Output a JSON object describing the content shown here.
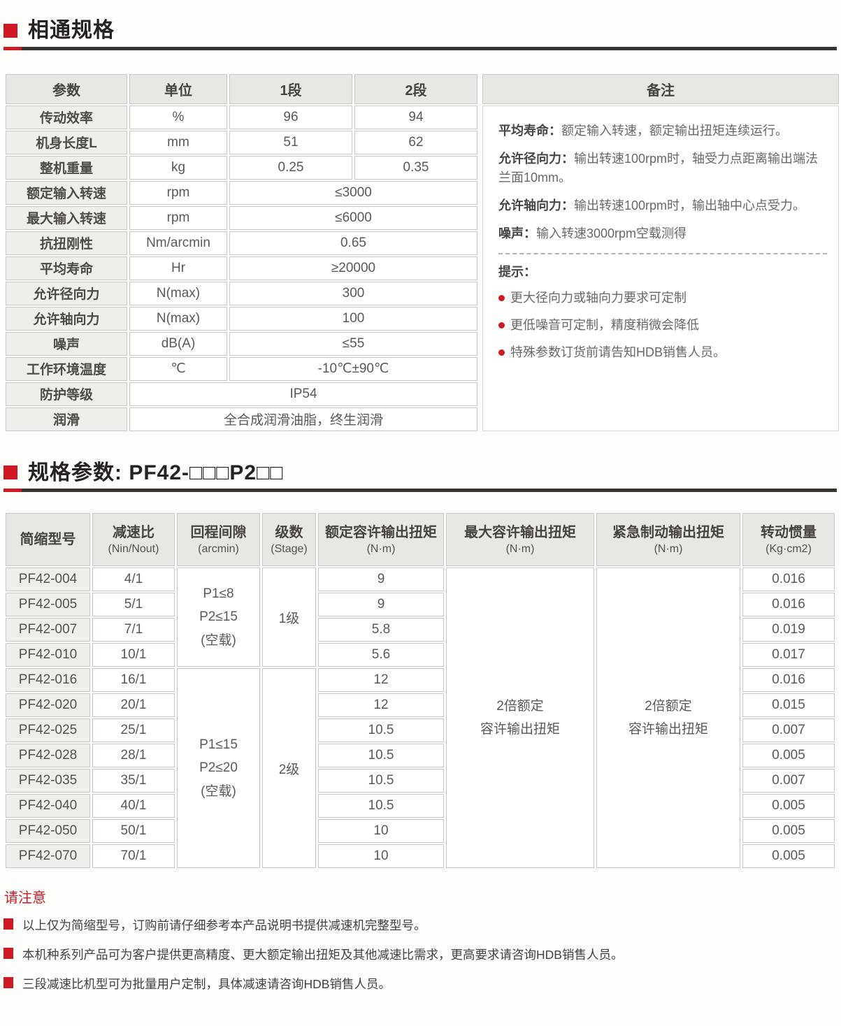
{
  "colors": {
    "accent": "#cf1a23",
    "heading_rule": "#38342f",
    "header_cell_bg": "#e8e7e3",
    "label_cell_bg": "#efeeea"
  },
  "section1": {
    "title": "相通规格",
    "table": {
      "headers": [
        "参数",
        "单位",
        "1段",
        "2段"
      ],
      "rows": [
        {
          "label": "传动效率",
          "unit": "%",
          "v1": "96",
          "v2": "94"
        },
        {
          "label": "机身长度L",
          "unit": "mm",
          "v1": "51",
          "v2": "62"
        },
        {
          "label": "整机重量",
          "unit": "kg",
          "v1": "0.25",
          "v2": "0.35"
        },
        {
          "label": "额定输入转速",
          "unit": "rpm",
          "span": "≤3000"
        },
        {
          "label": "最大输入转速",
          "unit": "rpm",
          "span": "≤6000"
        },
        {
          "label": "抗扭刚性",
          "unit": "Nm/arcmin",
          "span": "0.65"
        },
        {
          "label": "平均寿命",
          "unit": "Hr",
          "span": "≥20000"
        },
        {
          "label": "允许径向力",
          "unit": "N(max)",
          "span": "300"
        },
        {
          "label": "允许轴向力",
          "unit": "N(max)",
          "span": "100"
        },
        {
          "label": "噪声",
          "unit": "dB(A)",
          "span": "≤55"
        },
        {
          "label": "工作环境温度",
          "unit": "℃",
          "span": "-10℃±90℃"
        },
        {
          "label": "防护等级",
          "full": "IP54"
        },
        {
          "label": "润滑",
          "full": "全合成润滑油脂，终生润滑"
        }
      ]
    },
    "notes": {
      "header": "备注",
      "paragraphs": [
        {
          "label": "平均寿命：",
          "text": "额定输入转速，额定输出扭矩连续运行。"
        },
        {
          "label": "允许径向力：",
          "text": "输出转速100rpm时，轴受力点距离输出端法兰面10mm。"
        },
        {
          "label": "允许轴向力：",
          "text": "输出转速100rpm时，输出轴中心点受力。"
        },
        {
          "label": "噪声：",
          "text": "输入转速3000rpm空载测得"
        }
      ],
      "tips_title": "提示：",
      "tips": [
        "更大径向力或轴向力要求可定制",
        "更低噪音可定制，精度稍微会降低",
        "特殊参数订货前请告知HDB销售人员。"
      ]
    }
  },
  "section2": {
    "title": "规格参数: PF42-□□□P2□□",
    "table": {
      "headers": [
        {
          "cn": "简缩型号",
          "en": ""
        },
        {
          "cn": "减速比",
          "en": "(Nin/Nout)"
        },
        {
          "cn": "回程间隙",
          "en": "(arcmin)"
        },
        {
          "cn": "级数",
          "en": "(Stage)"
        },
        {
          "cn": "额定容许输出扭矩",
          "en": "(N·m)"
        },
        {
          "cn": "最大容许输出扭矩",
          "en": "(N·m)"
        },
        {
          "cn": "紧急制动输出扭矩",
          "en": "(N·m)"
        },
        {
          "cn": "转动惯量",
          "en": "(Kg·cm2)"
        }
      ],
      "rows": [
        {
          "model": "PF42-004",
          "ratio": "4/1",
          "torque": "9",
          "inertia": "0.016"
        },
        {
          "model": "PF42-005",
          "ratio": "5/1",
          "torque": "9",
          "inertia": "0.016"
        },
        {
          "model": "PF42-007",
          "ratio": "7/1",
          "torque": "5.8",
          "inertia": "0.019"
        },
        {
          "model": "PF42-010",
          "ratio": "10/1",
          "torque": "5.6",
          "inertia": "0.017"
        },
        {
          "model": "PF42-016",
          "ratio": "16/1",
          "torque": "12",
          "inertia": "0.016"
        },
        {
          "model": "PF42-020",
          "ratio": "20/1",
          "torque": "12",
          "inertia": "0.015"
        },
        {
          "model": "PF42-025",
          "ratio": "25/1",
          "torque": "10.5",
          "inertia": "0.007"
        },
        {
          "model": "PF42-028",
          "ratio": "28/1",
          "torque": "10.5",
          "inertia": "0.005"
        },
        {
          "model": "PF42-035",
          "ratio": "35/1",
          "torque": "10.5",
          "inertia": "0.007"
        },
        {
          "model": "PF42-040",
          "ratio": "40/1",
          "torque": "10.5",
          "inertia": "0.005"
        },
        {
          "model": "PF42-050",
          "ratio": "50/1",
          "torque": "10",
          "inertia": "0.005"
        },
        {
          "model": "PF42-070",
          "ratio": "70/1",
          "torque": "10",
          "inertia": "0.005"
        }
      ],
      "groups": [
        {
          "start": 0,
          "count": 4,
          "backlash": [
            "P1≤8",
            "P2≤15",
            "(空载)"
          ],
          "stage": "1级"
        },
        {
          "start": 4,
          "count": 8,
          "backlash": [
            "P1≤15",
            "P2≤20",
            "(空载)"
          ],
          "stage": "2级"
        }
      ],
      "max_torque": [
        "2倍额定",
        "容许输出扭矩"
      ],
      "brake_torque": [
        "2倍额定",
        "容许输出扭矩"
      ]
    }
  },
  "footer": {
    "title": "请注意",
    "items": [
      "以上仅为简缩型号，订购前请仔细参考本产品说明书提供减速机完整型号。",
      "本机种系列产品可为客户提供更高精度、更大额定输出扭矩及其他减速比需求，更高要求请咨询HDB销售人员。",
      "三段减速比机型可为批量用户定制，具体减速请咨询HDB销售人员。"
    ]
  }
}
